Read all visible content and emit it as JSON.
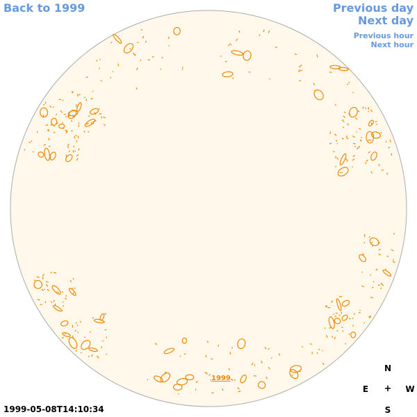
{
  "navigation": {
    "back_label": "Back to 1999",
    "previous_day_label": "Previous day",
    "next_day_label": "Next day",
    "previous_hour_label": "Previous hour",
    "next_hour_label": "Next hour"
  },
  "map": {
    "year_link_label": "1999",
    "timestamp": "1999-05-08T14:10:34",
    "disk_color": "#fff8eb",
    "disk_border_color": "#aaaaaa",
    "contour_color": "#ee8800",
    "link_color": "#6699dd"
  },
  "compass": {
    "north": "N",
    "east": "E",
    "center": "+",
    "west": "W",
    "south": "S"
  }
}
